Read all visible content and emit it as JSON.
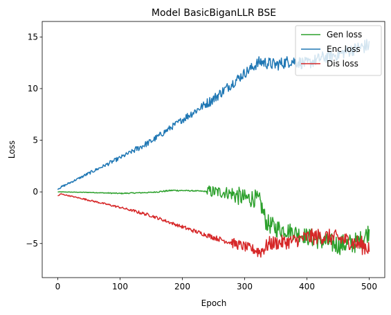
{
  "chart_data": {
    "type": "line",
    "title": "Model BasicBiganLLR BSE",
    "xlabel": "Epoch",
    "ylabel": "Loss",
    "xlim": [
      -25,
      525
    ],
    "ylim": [
      -8.3,
      16.5
    ],
    "xticks": [
      0,
      100,
      200,
      300,
      400,
      500
    ],
    "yticks": [
      -5,
      0,
      5,
      10,
      15
    ],
    "grid": false,
    "legend_position": "top-right",
    "series": [
      {
        "name": "Gen loss",
        "color": "#2ca02c",
        "noise": [
          0.02,
          0.03,
          0.05,
          0.05,
          0.07,
          0.05,
          0.6,
          0.9,
          0.9,
          0.8,
          0.9,
          1.0,
          0.9
        ],
        "points": [
          [
            0,
            0.0
          ],
          [
            50,
            -0.05
          ],
          [
            100,
            -0.15
          ],
          [
            150,
            -0.05
          ],
          [
            185,
            0.15
          ],
          [
            220,
            0.1
          ],
          [
            270,
            -0.05
          ],
          [
            290,
            -0.4
          ],
          [
            300,
            -0.65
          ],
          [
            315,
            -0.6
          ],
          [
            325,
            -1.0
          ],
          [
            335,
            -3.0
          ],
          [
            350,
            -3.5
          ],
          [
            375,
            -3.8
          ],
          [
            400,
            -4.3
          ],
          [
            425,
            -4.8
          ],
          [
            450,
            -5.1
          ],
          [
            475,
            -5.0
          ],
          [
            490,
            -4.5
          ],
          [
            500,
            -3.8
          ]
        ]
      },
      {
        "name": "Enc loss",
        "color": "#1f77b4",
        "noise": [
          0.1,
          0.15,
          0.2,
          0.3,
          0.3,
          0.4,
          0.5,
          0.5,
          0.6,
          0.6,
          0.6,
          0.6,
          0.7
        ],
        "points": [
          [
            0,
            0.3
          ],
          [
            50,
            1.8
          ],
          [
            100,
            3.3
          ],
          [
            150,
            4.9
          ],
          [
            200,
            7.0
          ],
          [
            250,
            9.0
          ],
          [
            300,
            11.5
          ],
          [
            325,
            12.6
          ],
          [
            350,
            12.3
          ],
          [
            375,
            12.7
          ],
          [
            400,
            12.4
          ],
          [
            425,
            13.0
          ],
          [
            450,
            13.3
          ],
          [
            475,
            13.8
          ],
          [
            500,
            14.2
          ]
        ]
      },
      {
        "name": "Dis loss",
        "color": "#d62728",
        "noise": [
          0.05,
          0.08,
          0.1,
          0.15,
          0.15,
          0.2,
          0.25,
          0.5,
          0.7,
          0.7,
          0.8,
          0.8,
          0.9
        ],
        "points": [
          [
            0,
            -0.4
          ],
          [
            5,
            -0.2
          ],
          [
            50,
            -0.8
          ],
          [
            100,
            -1.5
          ],
          [
            150,
            -2.3
          ],
          [
            200,
            -3.4
          ],
          [
            250,
            -4.4
          ],
          [
            300,
            -5.3
          ],
          [
            325,
            -5.8
          ],
          [
            340,
            -5.0
          ],
          [
            375,
            -4.8
          ],
          [
            400,
            -4.4
          ],
          [
            425,
            -4.3
          ],
          [
            450,
            -4.5
          ],
          [
            475,
            -4.9
          ],
          [
            500,
            -5.4
          ]
        ]
      }
    ]
  }
}
